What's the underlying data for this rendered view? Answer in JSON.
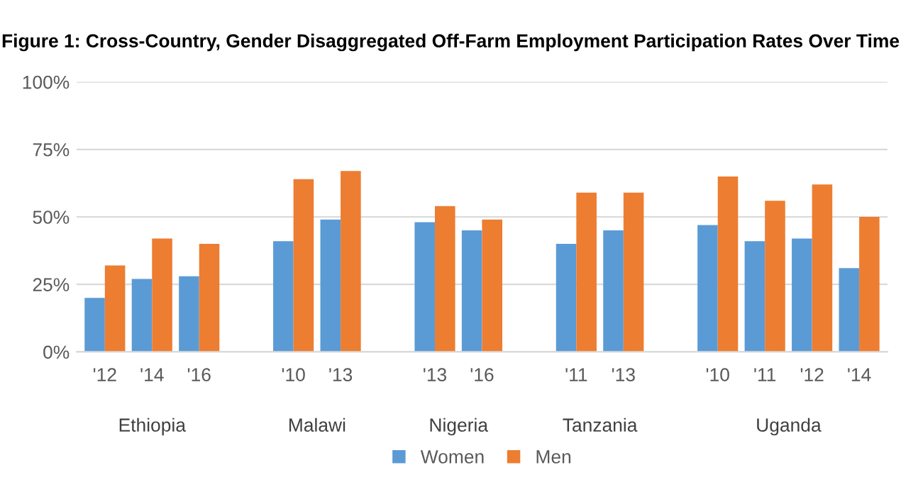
{
  "chart_data": {
    "type": "bar",
    "title": "Figure 1: Cross-Country, Gender Disaggregated Off-Farm Employment Participation Rates Over Time",
    "categories": [
      "'12",
      "'14",
      "'16",
      null,
      "'10",
      "'13",
      null,
      "'13",
      "'16",
      null,
      "'11",
      "'13",
      null,
      "'10",
      "'11",
      "'12",
      "'14"
    ],
    "series": [
      {
        "name": "Women",
        "color": "#5b9bd5",
        "values": [
          20,
          27,
          28,
          null,
          41,
          49,
          null,
          48,
          45,
          null,
          40,
          45,
          null,
          47,
          41,
          42,
          31
        ]
      },
      {
        "name": "Men",
        "color": "#ed7d31",
        "values": [
          32,
          42,
          40,
          null,
          64,
          67,
          null,
          54,
          49,
          null,
          59,
          59,
          null,
          65,
          56,
          62,
          50
        ]
      }
    ],
    "annotations": [
      "Ethiopia",
      "Malawi",
      "Nigeria",
      "Tanzania",
      "Uganda"
    ],
    "ylim": [
      0,
      100
    ],
    "yticks": [
      {
        "value": 0,
        "label": "0%"
      },
      {
        "value": 25,
        "label": "25%"
      },
      {
        "value": 50,
        "label": "50%"
      },
      {
        "value": 75,
        "label": "75%"
      },
      {
        "value": 100,
        "label": "100%"
      }
    ],
    "grid": "y",
    "legend": "bottom"
  }
}
